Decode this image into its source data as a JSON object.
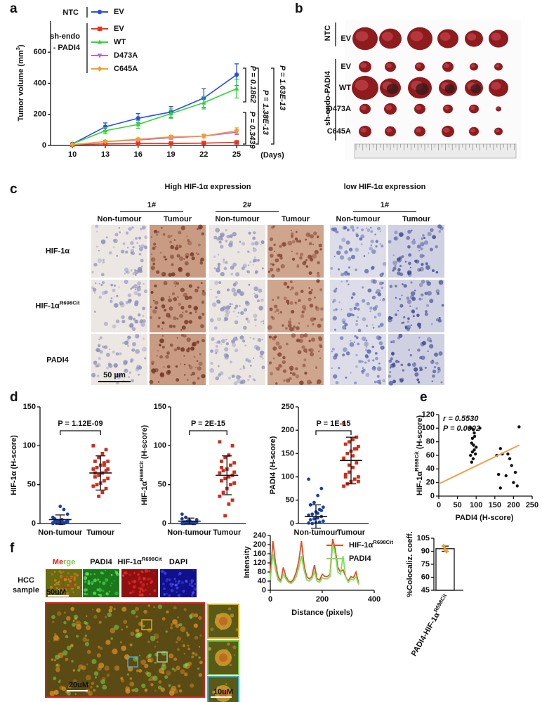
{
  "figure": {
    "panel_letters": [
      "a",
      "b",
      "c",
      "d",
      "e",
      "f"
    ],
    "b": {
      "group_labels": [
        "NTC",
        "sh-endo-PADI4"
      ],
      "row_labels": [
        "EV",
        "EV",
        "WT",
        "D473A",
        "C645A"
      ]
    },
    "c": {
      "groups": [
        {
          "title": "High HIF-1α expression",
          "samples": [
            "1#",
            "2#"
          ]
        },
        {
          "title": "low HIF-1α expression",
          "samples": [
            "1#"
          ]
        }
      ],
      "column_labels": [
        "Non-tumour",
        "Tumour"
      ],
      "row_labels": [
        "HIF-1α",
        [
          "HIF-1α",
          {
            "sup": "R698Cit"
          }
        ],
        "PADI4"
      ],
      "scale_bar": "50 μm"
    },
    "f": {
      "channel_labels": [
        [
          "Me",
          "rge"
        ],
        "PADI4",
        [
          "HIF-1α",
          {
            "sup": "R698Cit"
          }
        ],
        "DAPI"
      ],
      "sample_lines": [
        "HCC",
        "sample"
      ],
      "scale_bars": [
        "50uM",
        "20uM",
        "10uM"
      ]
    }
  },
  "chart_data": [
    {
      "type": "line",
      "y_label": [
        "Tumor volume (mm",
        {
          "sup": "3"
        },
        ")"
      ],
      "x_label": "(Days)",
      "x": [
        10,
        13,
        16,
        19,
        22,
        25
      ],
      "xlim": [
        8,
        26.6
      ],
      "xticks": [
        10,
        13,
        16,
        19,
        22,
        25
      ],
      "ylim": [
        0,
        800
      ],
      "yticks": [
        0,
        200,
        400,
        600
      ],
      "legend_group_labels": [
        [
          "NTC"
        ],
        [
          "sh-endo",
          "- PADI4"
        ]
      ],
      "series": [
        {
          "name": "EV",
          "color": "#2b4ee6",
          "marker": "circle",
          "values": [
            10,
            120,
            175,
            215,
            305,
            455
          ],
          "errors": [
            5,
            25,
            30,
            35,
            60,
            70
          ]
        },
        {
          "name": "EV",
          "color": "#e8341c",
          "marker": "square",
          "values": [
            5,
            10,
            12,
            12,
            15,
            20
          ],
          "errors": [
            2,
            3,
            4,
            4,
            5,
            6
          ]
        },
        {
          "name": "WT",
          "color": "#2fd62f",
          "marker": "triangle",
          "values": [
            10,
            95,
            135,
            205,
            275,
            365
          ],
          "errors": [
            5,
            20,
            25,
            30,
            40,
            60
          ]
        },
        {
          "name": "D473A",
          "color": "#c45ee0",
          "marker": "triangle-down",
          "values": [
            5,
            25,
            35,
            50,
            60,
            85
          ],
          "errors": [
            2,
            5,
            8,
            10,
            12,
            15
          ]
        },
        {
          "name": "C645A",
          "color": "#f0a030",
          "marker": "diamond",
          "values": [
            5,
            25,
            40,
            55,
            60,
            95
          ],
          "errors": [
            2,
            6,
            8,
            10,
            12,
            18
          ]
        }
      ],
      "p_labels": [
        "P = 0.1862",
        "P = 1.38E-13",
        "P = 1.63E-13",
        "P = 0.3439"
      ]
    },
    {
      "type": "dot",
      "y_label": "HIF-1α (H-score)",
      "categories": [
        "Non-tumour",
        "Tumour"
      ],
      "ylim": [
        0,
        150
      ],
      "yticks": [
        0,
        50,
        100,
        150
      ],
      "colors": [
        "#1a3fa8",
        "#d42a1a"
      ],
      "markers": [
        "circle",
        "square"
      ],
      "values": [
        [
          1,
          2,
          0,
          3,
          5,
          2,
          1,
          0,
          4,
          8,
          2,
          3,
          1,
          6,
          12,
          18,
          22,
          2,
          0,
          1,
          5,
          3,
          2,
          4,
          1
        ],
        [
          100,
          95,
          90,
          85,
          80,
          80,
          78,
          75,
          72,
          70,
          68,
          65,
          62,
          60,
          58,
          55,
          52,
          50,
          48,
          45,
          40,
          35,
          65,
          70,
          75
        ]
      ],
      "means": [
        5,
        65
      ],
      "sds": [
        6,
        22
      ],
      "p_label": "P = 1.12E-09"
    },
    {
      "type": "dot",
      "y_label": [
        "HIF-1α",
        {
          "sup": "R698Cit"
        },
        " (H-score)"
      ],
      "categories": [
        "Non-tumour",
        "Tumour"
      ],
      "ylim": [
        0,
        150
      ],
      "yticks": [
        0,
        50,
        100,
        150
      ],
      "colors": [
        "#1a3fa8",
        "#d42a1a"
      ],
      "markers": [
        "circle",
        "square"
      ],
      "values": [
        [
          0,
          1,
          2,
          3,
          0,
          5,
          1,
          2,
          8,
          12,
          0,
          1,
          3,
          2,
          1,
          0,
          4,
          2,
          6,
          1
        ],
        [
          105,
          100,
          88,
          85,
          80,
          78,
          75,
          70,
          68,
          65,
          62,
          60,
          58,
          55,
          52,
          50,
          45,
          40,
          35,
          30,
          25,
          10,
          72,
          66
        ]
      ],
      "means": [
        3,
        62
      ],
      "sds": [
        4,
        25
      ],
      "p_label": "P = 2E-15"
    },
    {
      "type": "dot",
      "y_label": "PADI4 (H-score)",
      "categories": [
        "Non-tumour",
        "Tumour"
      ],
      "ylim": [
        0,
        250
      ],
      "yticks": [
        0,
        50,
        100,
        150,
        200,
        250
      ],
      "colors": [
        "#1a3fa8",
        "#d42a1a"
      ],
      "markers": [
        "circle",
        "square"
      ],
      "values": [
        [
          95,
          75,
          60,
          45,
          40,
          35,
          30,
          25,
          20,
          18,
          15,
          12,
          10,
          8,
          5,
          3,
          2,
          0,
          1,
          28,
          22
        ],
        [
          215,
          185,
          180,
          175,
          170,
          165,
          160,
          155,
          150,
          140,
          130,
          120,
          110,
          105,
          100,
          95,
          90,
          85,
          80,
          160,
          145,
          125,
          100,
          90
        ]
      ],
      "means": [
        15,
        135
      ],
      "sds": [
        25,
        50
      ],
      "p_label": "P = 1E-15"
    },
    {
      "type": "scatter",
      "y_label": [
        "HIF-1α",
        {
          "sup": "R698Cit"
        },
        " (H-score)"
      ],
      "x_label": "PADI4 (H-score)",
      "xlim": [
        0,
        250
      ],
      "xticks": [
        0,
        50,
        100,
        150,
        200,
        250
      ],
      "ylim": [
        0,
        120
      ],
      "yticks": [
        0,
        20,
        40,
        60,
        80,
        100,
        120
      ],
      "x": [
        85,
        92,
        95,
        90,
        96,
        88,
        93,
        100,
        95,
        90,
        98,
        85,
        92,
        88,
        110,
        155,
        165,
        170,
        160,
        165,
        185,
        190,
        195,
        180,
        200,
        205,
        215,
        210
      ],
      "y": [
        100,
        98,
        93,
        85,
        88,
        78,
        75,
        72,
        68,
        65,
        62,
        60,
        55,
        50,
        100,
        60,
        70,
        62,
        32,
        12,
        62,
        55,
        45,
        30,
        20,
        35,
        102,
        15
      ],
      "color": "#111111",
      "fit_x": [
        0,
        215
      ],
      "fit_y": [
        18,
        75
      ],
      "fit_color": "#f5a04a",
      "annotations": [
        "r = 0.5530",
        "P = 0.0002"
      ]
    },
    {
      "type": "line",
      "y_label": "Intensity",
      "x_label": "Distance (pixels)",
      "x": [
        0,
        10,
        20,
        30,
        40,
        50,
        60,
        70,
        80,
        90,
        100,
        110,
        120,
        130,
        140,
        150,
        160,
        170,
        180,
        190,
        200,
        210,
        220,
        230,
        240,
        250,
        260,
        270,
        280,
        290,
        300,
        310,
        320,
        330,
        340
      ],
      "xlim": [
        0,
        400
      ],
      "xticks": [
        0,
        200,
        400
      ],
      "ylim": [
        0,
        240
      ],
      "yticks": [
        0,
        40,
        80,
        120,
        160,
        200,
        240
      ],
      "series": [
        {
          "name": [
            "HIF-1α",
            {
              "sup": "R698Cit"
            }
          ],
          "color": "#e0502a",
          "values": [
            60,
            215,
            120,
            60,
            40,
            100,
            60,
            40,
            35,
            50,
            80,
            130,
            215,
            110,
            60,
            50,
            60,
            110,
            50,
            45,
            70,
            60,
            60,
            70,
            225,
            180,
            100,
            80,
            90,
            60,
            40,
            60,
            55,
            80,
            30
          ]
        },
        {
          "name": "PADI4",
          "color": "#7ee05a",
          "values": [
            45,
            160,
            90,
            45,
            35,
            70,
            50,
            35,
            30,
            40,
            60,
            100,
            150,
            90,
            45,
            40,
            50,
            80,
            40,
            35,
            55,
            50,
            50,
            60,
            200,
            160,
            80,
            70,
            150,
            60,
            35,
            50,
            45,
            60,
            25
          ]
        }
      ]
    },
    {
      "type": "bar",
      "y_label": "%Colocaliz. coeff.",
      "categories": [
        [
          "PADI4-HIF-1α",
          {
            "sup": "R698Cit"
          }
        ]
      ],
      "ylim": [
        45,
        105
      ],
      "yticks": [
        45,
        60,
        75,
        90,
        105
      ],
      "values": [
        93
      ],
      "errors": [
        3
      ],
      "points": [
        [
          96,
          92,
          90
        ]
      ],
      "color": "#ffffff",
      "point_color": "#f0a030"
    }
  ]
}
